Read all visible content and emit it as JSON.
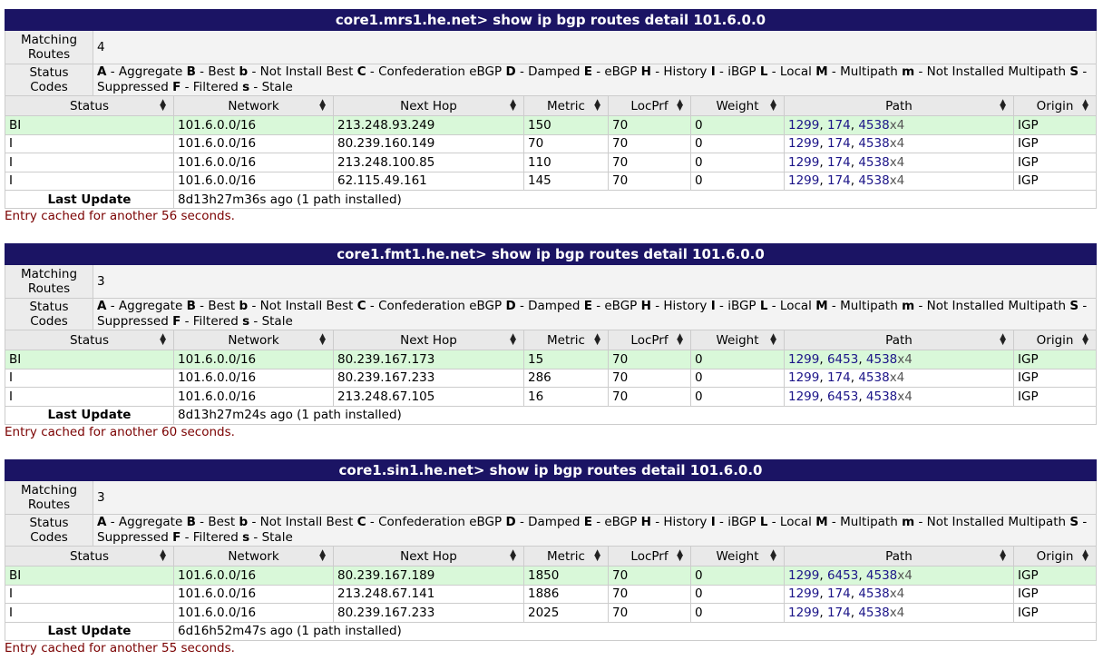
{
  "labels": {
    "matching_routes": "Matching Routes",
    "status_codes": "Status Codes",
    "last_update": "Last Update",
    "codes": [
      {
        "k": "A",
        "v": " - Aggregate "
      },
      {
        "k": "B",
        "v": " - Best "
      },
      {
        "k": "b",
        "v": " - Not Install Best "
      },
      {
        "k": "C",
        "v": " - Confederation eBGP "
      },
      {
        "k": "D",
        "v": " - Damped "
      },
      {
        "k": "E",
        "v": " - eBGP "
      },
      {
        "k": "H",
        "v": " - History "
      },
      {
        "k": "I",
        "v": " - iBGP "
      },
      {
        "k": "L",
        "v": " - Local "
      },
      {
        "k": "M",
        "v": " - Multipath "
      },
      {
        "k": "m",
        "v": " - Not Installed Multipath "
      },
      {
        "k": "S",
        "v": " - Suppressed "
      },
      {
        "k": "F",
        "v": " - Filtered "
      },
      {
        "k": "s",
        "v": " - Stale"
      }
    ],
    "columns": [
      "Status",
      "Network",
      "Next Hop",
      "Metric",
      "LocPrf",
      "Weight",
      "Path",
      "Origin"
    ]
  },
  "panels": [
    {
      "title": "core1.mrs1.he.net> show ip bgp routes detail 101.6.0.0",
      "matching": "4",
      "rows": [
        {
          "status": "BI",
          "network": "101.6.0.0/16",
          "nexthop": "213.248.93.249",
          "metric": "150",
          "locprf": "70",
          "weight": "0",
          "path": [
            "1299",
            "174",
            "4538"
          ],
          "prepend": "x4",
          "origin": "IGP",
          "best": true
        },
        {
          "status": "I",
          "network": "101.6.0.0/16",
          "nexthop": "80.239.160.149",
          "metric": "70",
          "locprf": "70",
          "weight": "0",
          "path": [
            "1299",
            "174",
            "4538"
          ],
          "prepend": "x4",
          "origin": "IGP",
          "best": false
        },
        {
          "status": "I",
          "network": "101.6.0.0/16",
          "nexthop": "213.248.100.85",
          "metric": "110",
          "locprf": "70",
          "weight": "0",
          "path": [
            "1299",
            "174",
            "4538"
          ],
          "prepend": "x4",
          "origin": "IGP",
          "best": false
        },
        {
          "status": "I",
          "network": "101.6.0.0/16",
          "nexthop": "62.115.49.161",
          "metric": "145",
          "locprf": "70",
          "weight": "0",
          "path": [
            "1299",
            "174",
            "4538"
          ],
          "prepend": "x4",
          "origin": "IGP",
          "best": false
        }
      ],
      "last_update": "8d13h27m36s ago (1 path installed)",
      "cache": "Entry cached for another 56 seconds."
    },
    {
      "title": "core1.fmt1.he.net> show ip bgp routes detail 101.6.0.0",
      "matching": "3",
      "rows": [
        {
          "status": "BI",
          "network": "101.6.0.0/16",
          "nexthop": "80.239.167.173",
          "metric": "15",
          "locprf": "70",
          "weight": "0",
          "path": [
            "1299",
            "6453",
            "4538"
          ],
          "prepend": "x4",
          "origin": "IGP",
          "best": true
        },
        {
          "status": "I",
          "network": "101.6.0.0/16",
          "nexthop": "80.239.167.233",
          "metric": "286",
          "locprf": "70",
          "weight": "0",
          "path": [
            "1299",
            "174",
            "4538"
          ],
          "prepend": "x4",
          "origin": "IGP",
          "best": false
        },
        {
          "status": "I",
          "network": "101.6.0.0/16",
          "nexthop": "213.248.67.105",
          "metric": "16",
          "locprf": "70",
          "weight": "0",
          "path": [
            "1299",
            "6453",
            "4538"
          ],
          "prepend": "x4",
          "origin": "IGP",
          "best": false
        }
      ],
      "last_update": "8d13h27m24s ago (1 path installed)",
      "cache": "Entry cached for another 60 seconds."
    },
    {
      "title": "core1.sin1.he.net> show ip bgp routes detail 101.6.0.0",
      "matching": "3",
      "rows": [
        {
          "status": "BI",
          "network": "101.6.0.0/16",
          "nexthop": "80.239.167.189",
          "metric": "1850",
          "locprf": "70",
          "weight": "0",
          "path": [
            "1299",
            "6453",
            "4538"
          ],
          "prepend": "x4",
          "origin": "IGP",
          "best": true
        },
        {
          "status": "I",
          "network": "101.6.0.0/16",
          "nexthop": "213.248.67.141",
          "metric": "1886",
          "locprf": "70",
          "weight": "0",
          "path": [
            "1299",
            "174",
            "4538"
          ],
          "prepend": "x4",
          "origin": "IGP",
          "best": false
        },
        {
          "status": "I",
          "network": "101.6.0.0/16",
          "nexthop": "80.239.167.233",
          "metric": "2025",
          "locprf": "70",
          "weight": "0",
          "path": [
            "1299",
            "174",
            "4538"
          ],
          "prepend": "x4",
          "origin": "IGP",
          "best": false
        }
      ],
      "last_update": "6d16h52m47s ago (1 path installed)",
      "cache": "Entry cached for another 55 seconds."
    }
  ]
}
